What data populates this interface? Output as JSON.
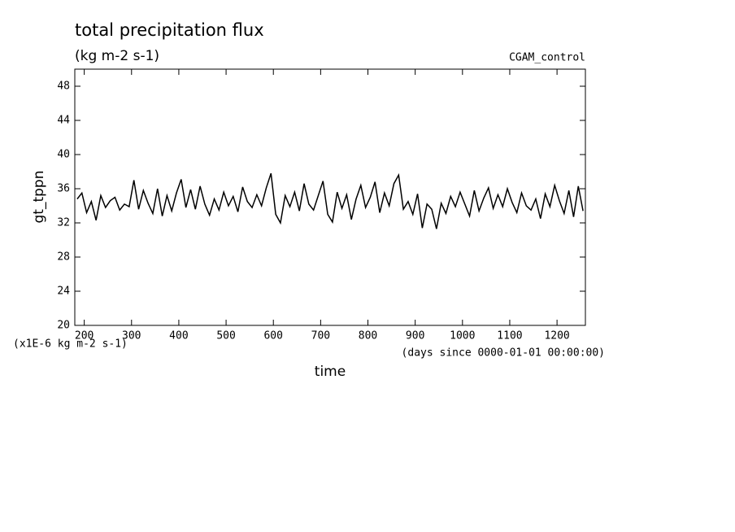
{
  "chart_data": {
    "type": "line",
    "title": "total precipitation flux",
    "subtitle": "(kg m-2 s-1)",
    "annotation": "CGAM_control",
    "ylabel": "gt_tppn",
    "yunits": "(x1E-6 kg m-2 s-1)",
    "xunits": "(days since 0000-01-01 00:00:00)",
    "xlabel": "time",
    "xlim": [
      180,
      1260
    ],
    "ylim": [
      20,
      50
    ],
    "xticks": [
      200,
      300,
      400,
      500,
      600,
      700,
      800,
      900,
      1000,
      1100,
      1200
    ],
    "yticks": [
      20,
      24,
      28,
      32,
      36,
      40,
      44,
      48
    ],
    "x": [
      185,
      195,
      205,
      215,
      225,
      235,
      245,
      255,
      265,
      275,
      285,
      295,
      305,
      315,
      325,
      335,
      345,
      355,
      365,
      375,
      385,
      395,
      405,
      415,
      425,
      435,
      445,
      455,
      465,
      475,
      485,
      495,
      505,
      515,
      525,
      535,
      545,
      555,
      565,
      575,
      585,
      595,
      605,
      615,
      625,
      635,
      645,
      655,
      665,
      675,
      685,
      695,
      705,
      715,
      725,
      735,
      745,
      755,
      765,
      775,
      785,
      795,
      805,
      815,
      825,
      835,
      845,
      855,
      865,
      875,
      885,
      895,
      905,
      915,
      925,
      935,
      945,
      955,
      965,
      975,
      985,
      995,
      1005,
      1015,
      1025,
      1035,
      1045,
      1055,
      1065,
      1075,
      1085,
      1095,
      1105,
      1115,
      1125,
      1135,
      1145,
      1155,
      1165,
      1175,
      1185,
      1195,
      1205,
      1215,
      1225,
      1235,
      1245,
      1255
    ],
    "series": [
      {
        "color": "#000000",
        "values": [
          34.8,
          35.5,
          33.2,
          34.5,
          32.3,
          35.2,
          33.8,
          34.6,
          35.0,
          33.5,
          34.2,
          33.9,
          37.0,
          33.6,
          35.8,
          34.3,
          33.1,
          36.0,
          32.8,
          35.2,
          33.4,
          35.5,
          37.1,
          33.8,
          35.9,
          33.6,
          36.3,
          34.2,
          32.9,
          34.8,
          33.5,
          35.6,
          34.0,
          35.1,
          33.3,
          36.2,
          34.5,
          33.8,
          35.3,
          34.0,
          36.1,
          37.8,
          33.0,
          32.0,
          35.2,
          33.9,
          35.6,
          33.4,
          36.6,
          34.2,
          33.5,
          35.2,
          36.9,
          33.0,
          32.1,
          35.6,
          33.7,
          35.3,
          32.4,
          34.8,
          36.4,
          33.8,
          35.0,
          36.8,
          33.2,
          35.5,
          34.0,
          36.6,
          37.6,
          33.6,
          34.5,
          33.0,
          35.4,
          31.4,
          34.2,
          33.6,
          31.3,
          34.3,
          33.1,
          35.1,
          33.9,
          35.6,
          34.2,
          32.8,
          35.8,
          33.4,
          34.9,
          36.1,
          33.7,
          35.3,
          33.9,
          36.0,
          34.4,
          33.2,
          35.5,
          34.0,
          33.5,
          34.8,
          32.5,
          35.4,
          33.9,
          36.4,
          34.6,
          33.1,
          35.8,
          32.7,
          36.3,
          33.4
        ]
      }
    ]
  }
}
